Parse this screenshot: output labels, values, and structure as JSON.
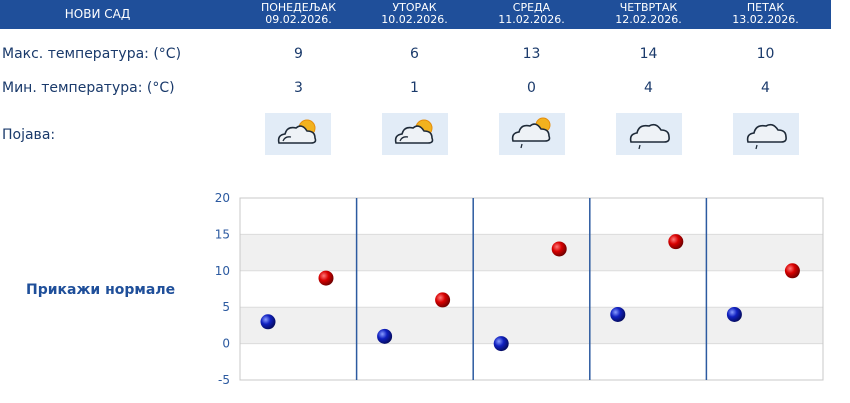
{
  "header": {
    "city": "НОВИ САД"
  },
  "days": [
    {
      "name": "ПОНЕДЕЉАК",
      "date": "09.02.2026.",
      "max": "9",
      "min": "3",
      "icon": "sun-cloud-icon"
    },
    {
      "name": "УТОРАК",
      "date": "10.02.2026.",
      "max": "6",
      "min": "1",
      "icon": "sun-cloud-icon"
    },
    {
      "name": "СРЕДА",
      "date": "11.02.2026.",
      "max": "13",
      "min": "0",
      "icon": "sun-cloud-rain-icon"
    },
    {
      "name": "ЧЕТВРТАК",
      "date": "12.02.2026.",
      "max": "14",
      "min": "4",
      "icon": "cloud-rain-icon"
    },
    {
      "name": "ПЕТАК",
      "date": "13.02.2026.",
      "max": "10",
      "min": "4",
      "icon": "cloud-rain-icon"
    }
  ],
  "labels": {
    "max_temp": "Макс. температура: (°C)",
    "min_temp": "Мин. температура: (°C)",
    "phenomenon": "Појава:",
    "show_normals": "Прикажи нормале"
  },
  "colors": {
    "header": "#1f4f9a",
    "max_point": "#cc0000",
    "min_point": "#1020b0",
    "band": "#f0f0f0"
  },
  "chart_data": {
    "type": "scatter",
    "ylim": [
      -5,
      20
    ],
    "yticks": [
      "20",
      "15",
      "10",
      "5",
      "0",
      "-5"
    ],
    "series": [
      {
        "values": [
          3,
          1,
          0,
          4,
          4
        ]
      },
      {
        "values": [
          9,
          6,
          13,
          14,
          10
        ]
      }
    ]
  }
}
